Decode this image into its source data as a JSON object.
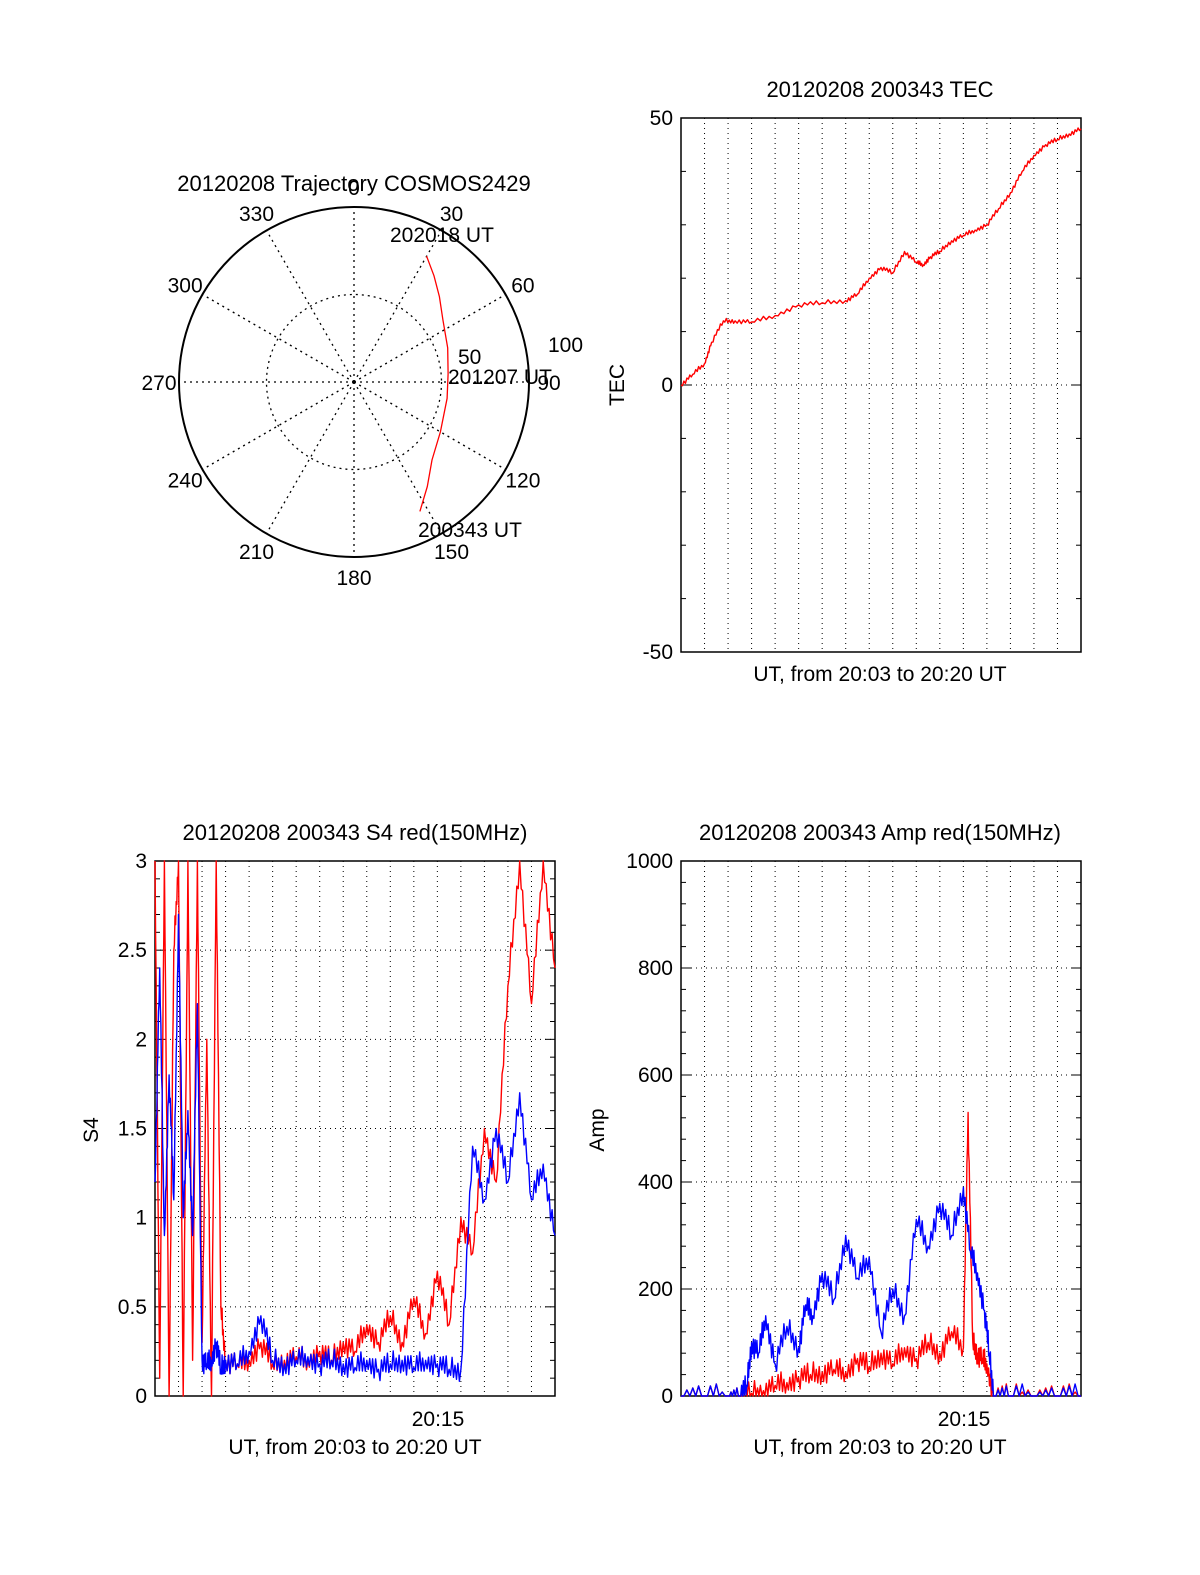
{
  "chart_data": [
    {
      "type": "polar",
      "title": "20120208 Trajectory COSMOS2429",
      "azimuth_labels": [
        "0",
        "30",
        "60",
        "90",
        "120",
        "150",
        "180",
        "210",
        "240",
        "270",
        "300",
        "330"
      ],
      "radial_labels": [
        "50",
        "100"
      ],
      "radial_max": 100,
      "grid": true,
      "series": [
        {
          "color": "#ff0000",
          "points": [
            [
              153,
              83
            ],
            [
              145,
              73
            ],
            [
              135,
              63
            ],
            [
              120,
              57
            ],
            [
              100,
              54
            ],
            [
              85,
              54
            ],
            [
              70,
              57
            ],
            [
              55,
              62
            ],
            [
              45,
              69
            ],
            [
              37,
              76
            ],
            [
              30,
              83
            ]
          ]
        }
      ],
      "annotations": [
        {
          "text": "200343 UT",
          "az": 150,
          "r": 83
        },
        {
          "text": "201207 UT",
          "az": 97,
          "r": 66
        },
        {
          "text": "202018 UT",
          "az": 28,
          "r": 91
        }
      ]
    },
    {
      "type": "line",
      "title": "20120208 200343 TEC",
      "ylabel": "TEC",
      "xlabel": "UT, from 20:03 to 20:20 UT",
      "ylim": [
        -50,
        50
      ],
      "yticks": [
        "-50",
        "0",
        "50"
      ],
      "xlim": [
        0,
        17
      ],
      "grid": true,
      "series": [
        {
          "color": "#ff0000",
          "x": [
            0,
            0.5,
            1.0,
            1.3,
            1.8,
            2.3,
            3.0,
            4.0,
            5.0,
            6.0,
            7.0,
            7.5,
            8.0,
            8.5,
            9.0,
            9.5,
            10.0,
            10.3,
            10.6,
            11.0,
            11.5,
            12.0,
            12.5,
            13.0,
            13.5,
            14.0,
            14.5,
            15.0,
            15.5,
            16.0,
            16.5,
            17.0
          ],
          "y": [
            0,
            2,
            4,
            8,
            12,
            12,
            11.8,
            13,
            15,
            15.4,
            15.8,
            17,
            20,
            22,
            21,
            25,
            23,
            22.5,
            24,
            25,
            27,
            28,
            29,
            30,
            33,
            36,
            40,
            43,
            45,
            46,
            47,
            48
          ]
        }
      ]
    },
    {
      "type": "line",
      "title": "20120208 200343 S4 red(150MHz)",
      "ylabel": "S4",
      "xlabel": "UT, from 20:03 to 20:20 UT",
      "xtick_label": "20:15",
      "ylim": [
        0,
        3
      ],
      "yticks": [
        "0",
        "0.5",
        "1",
        "1.5",
        "2",
        "2.5",
        "3"
      ],
      "xlim": [
        0,
        17
      ],
      "grid": true,
      "series": [
        {
          "color": "#ff0000",
          "x": [
            0.0,
            0.2,
            0.4,
            0.6,
            0.8,
            1.0,
            1.2,
            1.4,
            1.6,
            1.8,
            2.0,
            2.2,
            2.4,
            2.6,
            2.8,
            3.0,
            3.5,
            4.0,
            4.5,
            5.0,
            5.5,
            6.0,
            6.5,
            7.0,
            7.5,
            8.0,
            8.5,
            9.0,
            9.5,
            10.0,
            10.5,
            11.0,
            11.5,
            12.0,
            12.5,
            13.0,
            13.5,
            14.0,
            14.5,
            15.0,
            15.5,
            16.0,
            16.5,
            17.0
          ],
          "y": [
            3.0,
            0.1,
            3.0,
            0.0,
            2.5,
            3.0,
            0.0,
            3.0,
            0.2,
            3.0,
            0.3,
            2.0,
            0.0,
            3.0,
            0.5,
            0.2,
            0.18,
            0.2,
            0.3,
            0.18,
            0.2,
            0.22,
            0.2,
            0.25,
            0.2,
            0.3,
            0.25,
            0.4,
            0.3,
            0.45,
            0.3,
            0.55,
            0.35,
            0.7,
            0.4,
            1.0,
            0.8,
            1.5,
            1.2,
            2.3,
            3.0,
            2.2,
            3.0,
            2.4
          ]
        },
        {
          "color": "#0000ff",
          "x": [
            0.0,
            0.2,
            0.4,
            0.6,
            0.8,
            1.0,
            1.2,
            1.4,
            1.6,
            1.8,
            2.0,
            2.2,
            2.4,
            2.6,
            2.8,
            3.0,
            3.5,
            4.0,
            4.5,
            5.0,
            5.5,
            6.0,
            6.5,
            7.0,
            7.5,
            8.0,
            8.5,
            9.0,
            9.5,
            10.0,
            10.5,
            11.0,
            11.5,
            12.0,
            12.5,
            13.0,
            13.5,
            14.0,
            14.5,
            15.0,
            15.5,
            16.0,
            16.5,
            17.0
          ],
          "y": [
            1.2,
            2.4,
            0.9,
            1.8,
            1.1,
            2.7,
            1.0,
            1.6,
            0.9,
            2.2,
            0.2,
            0.18,
            0.2,
            0.3,
            0.15,
            0.2,
            0.18,
            0.25,
            0.45,
            0.2,
            0.18,
            0.2,
            0.22,
            0.18,
            0.2,
            0.18,
            0.16,
            0.2,
            0.15,
            0.18,
            0.2,
            0.16,
            0.2,
            0.18,
            0.15,
            0.15,
            1.4,
            1.1,
            1.5,
            1.2,
            1.7,
            1.1,
            1.3,
            0.9
          ]
        }
      ]
    },
    {
      "type": "line",
      "title": "20120208 200343 Amp red(150MHz)",
      "ylabel": "Amp",
      "xlabel": "UT, from 20:03 to 20:20 UT",
      "xtick_label": "20:15",
      "ylim": [
        0,
        1000
      ],
      "yticks": [
        "0",
        "200",
        "400",
        "600",
        "800",
        "1000"
      ],
      "xlim": [
        0,
        17
      ],
      "grid": true,
      "series": [
        {
          "color": "#ff0000",
          "x": [
            0,
            1,
            2,
            2.5,
            3,
            3.5,
            4,
            4.5,
            5,
            5.5,
            6,
            6.5,
            7,
            7.5,
            8,
            8.5,
            9,
            9.5,
            10,
            10.5,
            11,
            11.5,
            12,
            12.2,
            12.4,
            12.6,
            12.8,
            13.0,
            13.3,
            14,
            15,
            16,
            17
          ],
          "y": [
            0,
            0,
            0,
            0,
            5,
            10,
            20,
            25,
            35,
            40,
            45,
            50,
            45,
            70,
            55,
            80,
            60,
            90,
            70,
            100,
            80,
            120,
            90,
            530,
            100,
            80,
            70,
            60,
            0,
            0,
            0,
            0,
            0
          ]
        },
        {
          "color": "#0000ff",
          "x": [
            0,
            1,
            2,
            2.5,
            2.8,
            3.0,
            3.3,
            3.6,
            4.0,
            4.5,
            5.0,
            5.3,
            5.6,
            6.0,
            6.5,
            7.0,
            7.5,
            8.0,
            8.5,
            9.0,
            9.5,
            10.0,
            10.5,
            11.0,
            11.5,
            12.0,
            12.3,
            12.6,
            12.9,
            13.1,
            13.3,
            14,
            15,
            16,
            17
          ],
          "y": [
            0,
            0,
            0,
            0,
            20,
            100,
            80,
            150,
            60,
            130,
            90,
            170,
            150,
            230,
            180,
            300,
            220,
            260,
            120,
            200,
            150,
            330,
            280,
            360,
            300,
            390,
            270,
            230,
            160,
            80,
            0,
            0,
            0,
            0,
            0
          ]
        }
      ]
    }
  ]
}
